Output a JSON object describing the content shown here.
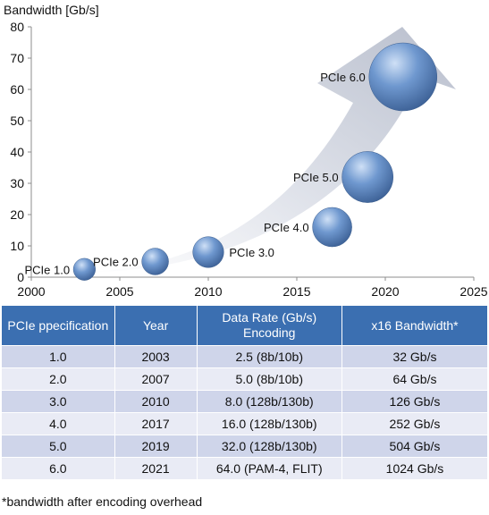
{
  "chart_data": {
    "type": "bubble",
    "ylabel": "Bandwidth [Gb/s]",
    "xlim": [
      2000,
      2025
    ],
    "ylim": [
      0,
      80
    ],
    "xticks": [
      2000,
      2005,
      2010,
      2015,
      2020,
      2025
    ],
    "yticks": [
      0,
      10,
      20,
      30,
      40,
      50,
      60,
      70,
      80
    ],
    "grid": false,
    "points": [
      {
        "label": "PCIe 1.0",
        "x": 2003,
        "y": 2.5,
        "size": 2.5
      },
      {
        "label": "PCIe 2.0",
        "x": 2007,
        "y": 5.0,
        "size": 5.0
      },
      {
        "label": "PCIe 3.0",
        "x": 2010,
        "y": 8.0,
        "size": 8.0
      },
      {
        "label": "PCIe 4.0",
        "x": 2017,
        "y": 16.0,
        "size": 16.0
      },
      {
        "label": "PCIe 5.0",
        "x": 2019,
        "y": 32.0,
        "size": 32.0
      },
      {
        "label": "PCIe 6.0",
        "x": 2021,
        "y": 64.0,
        "size": 64.0
      }
    ],
    "colors": {
      "bubble": "#5b86c2",
      "arrow": "#c9cdd9"
    }
  },
  "table": {
    "headers": [
      "PCIe ppecification",
      "Year",
      "Data Rate (Gb/s) Encoding",
      "x16 Bandwidth*"
    ],
    "rows": [
      [
        "1.0",
        "2003",
        "2.5 (8b/10b)",
        "32 Gb/s"
      ],
      [
        "2.0",
        "2007",
        "5.0 (8b/10b)",
        "64 Gb/s"
      ],
      [
        "3.0",
        "2010",
        "8.0 (128b/130b)",
        "126 Gb/s"
      ],
      [
        "4.0",
        "2017",
        "16.0 (128b/130b)",
        "252 Gb/s"
      ],
      [
        "5.0",
        "2019",
        "32.0 (128b/130b)",
        "504 Gb/s"
      ],
      [
        "6.0",
        "2021",
        "64.0 (PAM-4, FLIT)",
        "1024 Gb/s"
      ]
    ],
    "header_color": "#3b6fb1",
    "row_colors": [
      "#cfd5ea",
      "#e9ebf5"
    ]
  },
  "footnote": "*bandwidth after encoding overhead"
}
